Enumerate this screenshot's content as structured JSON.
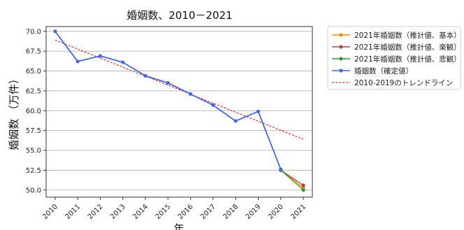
{
  "chart_data": {
    "type": "line",
    "title": "婚姻数、2010－2021",
    "xlabel": "年",
    "ylabel": "婚姻数 （万件）",
    "x": [
      2010,
      2011,
      2012,
      2013,
      2014,
      2015,
      2016,
      2017,
      2018,
      2019,
      2020,
      2021
    ],
    "x_ticks": [
      "2010",
      "2011",
      "2012",
      "2013",
      "2014",
      "2015",
      "2016",
      "2017",
      "2018",
      "2019",
      "2020",
      "2021"
    ],
    "xlim": [
      2009.6,
      2021.4
    ],
    "ylim": [
      49.1,
      70.6
    ],
    "y_ticks": [
      50.0,
      52.5,
      55.0,
      57.5,
      60.0,
      62.5,
      65.0,
      67.5,
      70.0
    ],
    "y_tick_labels": [
      "50.0",
      "52.5",
      "55.0",
      "57.5",
      "60.0",
      "62.5",
      "65.0",
      "67.5",
      "70.0"
    ],
    "grid": "horizontal",
    "legend_position": "outside-right",
    "series": [
      {
        "name": "2021年婚姻数（推計値、基本）",
        "color": "#ff8c00",
        "style": "line-marker",
        "x": [
          2020,
          2021
        ],
        "y": [
          52.5,
          50.3
        ]
      },
      {
        "name": "2021年婚姻数（推計値、楽観）",
        "color": "#b24545",
        "style": "line-marker",
        "x": [
          2020,
          2021
        ],
        "y": [
          52.5,
          50.6
        ]
      },
      {
        "name": "2021年婚姻数（推計値、悲観）",
        "color": "#2ca02c",
        "style": "line-marker",
        "x": [
          2020,
          2021
        ],
        "y": [
          52.5,
          50.0
        ]
      },
      {
        "name": "婚姻数（確定値）",
        "color": "#4169e1",
        "style": "line-marker",
        "x": [
          2010,
          2011,
          2012,
          2013,
          2014,
          2015,
          2016,
          2017,
          2018,
          2019,
          2020
        ],
        "y": [
          70.0,
          66.2,
          66.9,
          66.1,
          64.4,
          63.5,
          62.1,
          60.7,
          58.7,
          59.9,
          52.6
        ]
      },
      {
        "name": "2010-2019のトレンドライン",
        "color": "#ff0000",
        "style": "dashed",
        "x": [
          2010,
          2021
        ],
        "y": [
          68.9,
          56.4
        ]
      }
    ]
  }
}
